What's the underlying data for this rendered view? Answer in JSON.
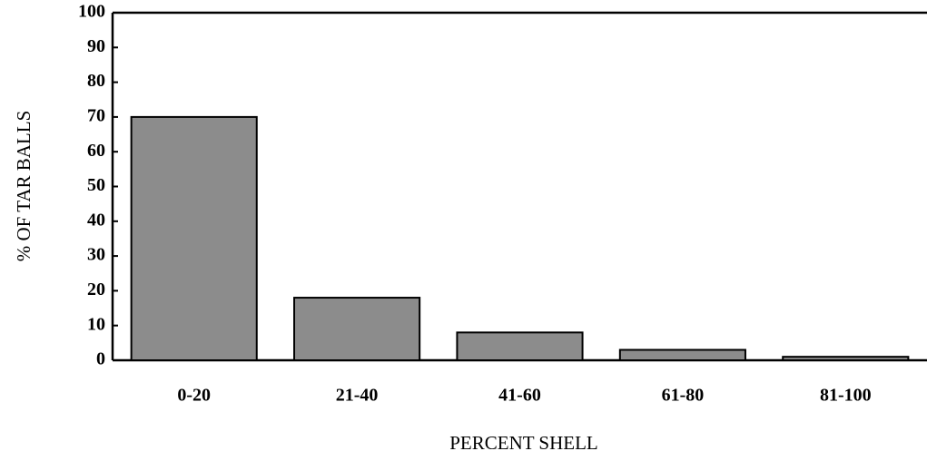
{
  "chart_data": {
    "type": "bar",
    "x_label": "PERCENT SHELL",
    "y_label": "% OF TAR BALLS",
    "categories": [
      "0-20",
      "21-40",
      "41-60",
      "61-80",
      "81-100"
    ],
    "values": [
      70,
      18,
      8,
      3,
      1
    ],
    "color": "#8c8c8c",
    "ylim": [
      0,
      100
    ],
    "yticks": [
      0,
      10,
      20,
      30,
      40,
      50,
      60,
      70,
      80,
      90,
      100
    ],
    "grid": false
  }
}
